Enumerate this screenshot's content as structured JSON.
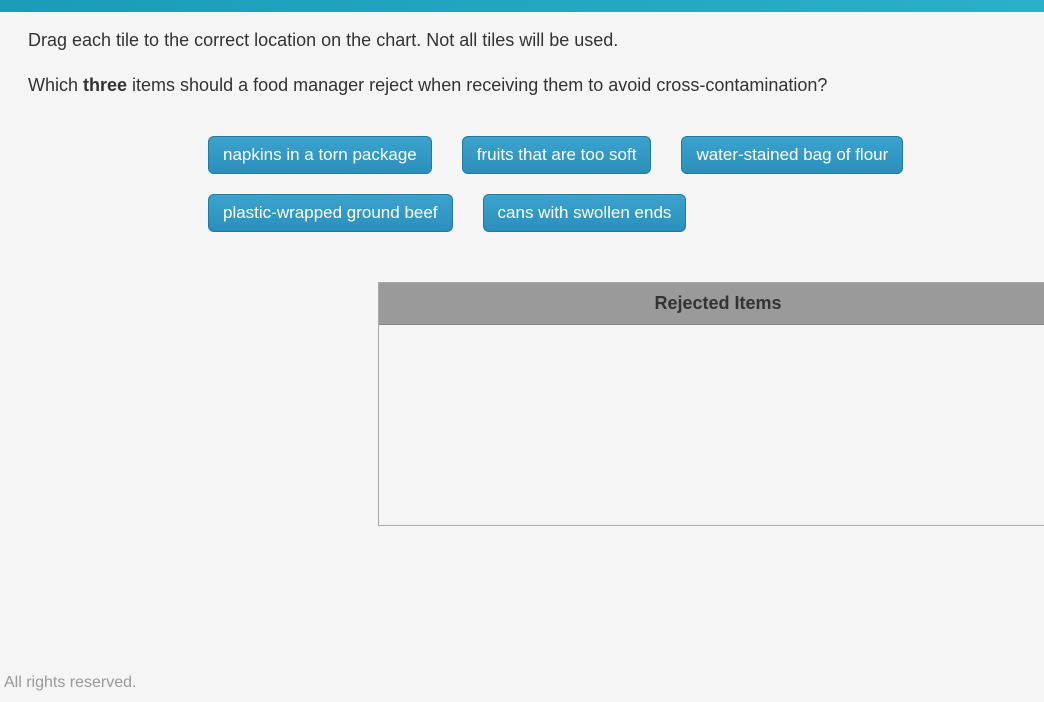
{
  "instruction": "Drag each tile to the correct location on the chart. Not all tiles will be used.",
  "question_prefix": "Which ",
  "question_bold": "three",
  "question_suffix": " items should a food manager reject when receiving them to avoid cross-contamination?",
  "tiles": {
    "row1": [
      "napkins in a torn package",
      "fruits that are too soft",
      "water-stained bag of flour"
    ],
    "row2": [
      "plastic-wrapped ground beef",
      "cans with swollen ends"
    ]
  },
  "chart": {
    "header": "Rejected Items"
  },
  "footer": "All rights reserved.",
  "colors": {
    "tile_bg": "#2b8fbb",
    "tile_text": "#ffffff",
    "chart_header_bg": "#9a9a9a",
    "body_bg": "#f5f5f5",
    "top_bar": "#2bb0c9"
  }
}
